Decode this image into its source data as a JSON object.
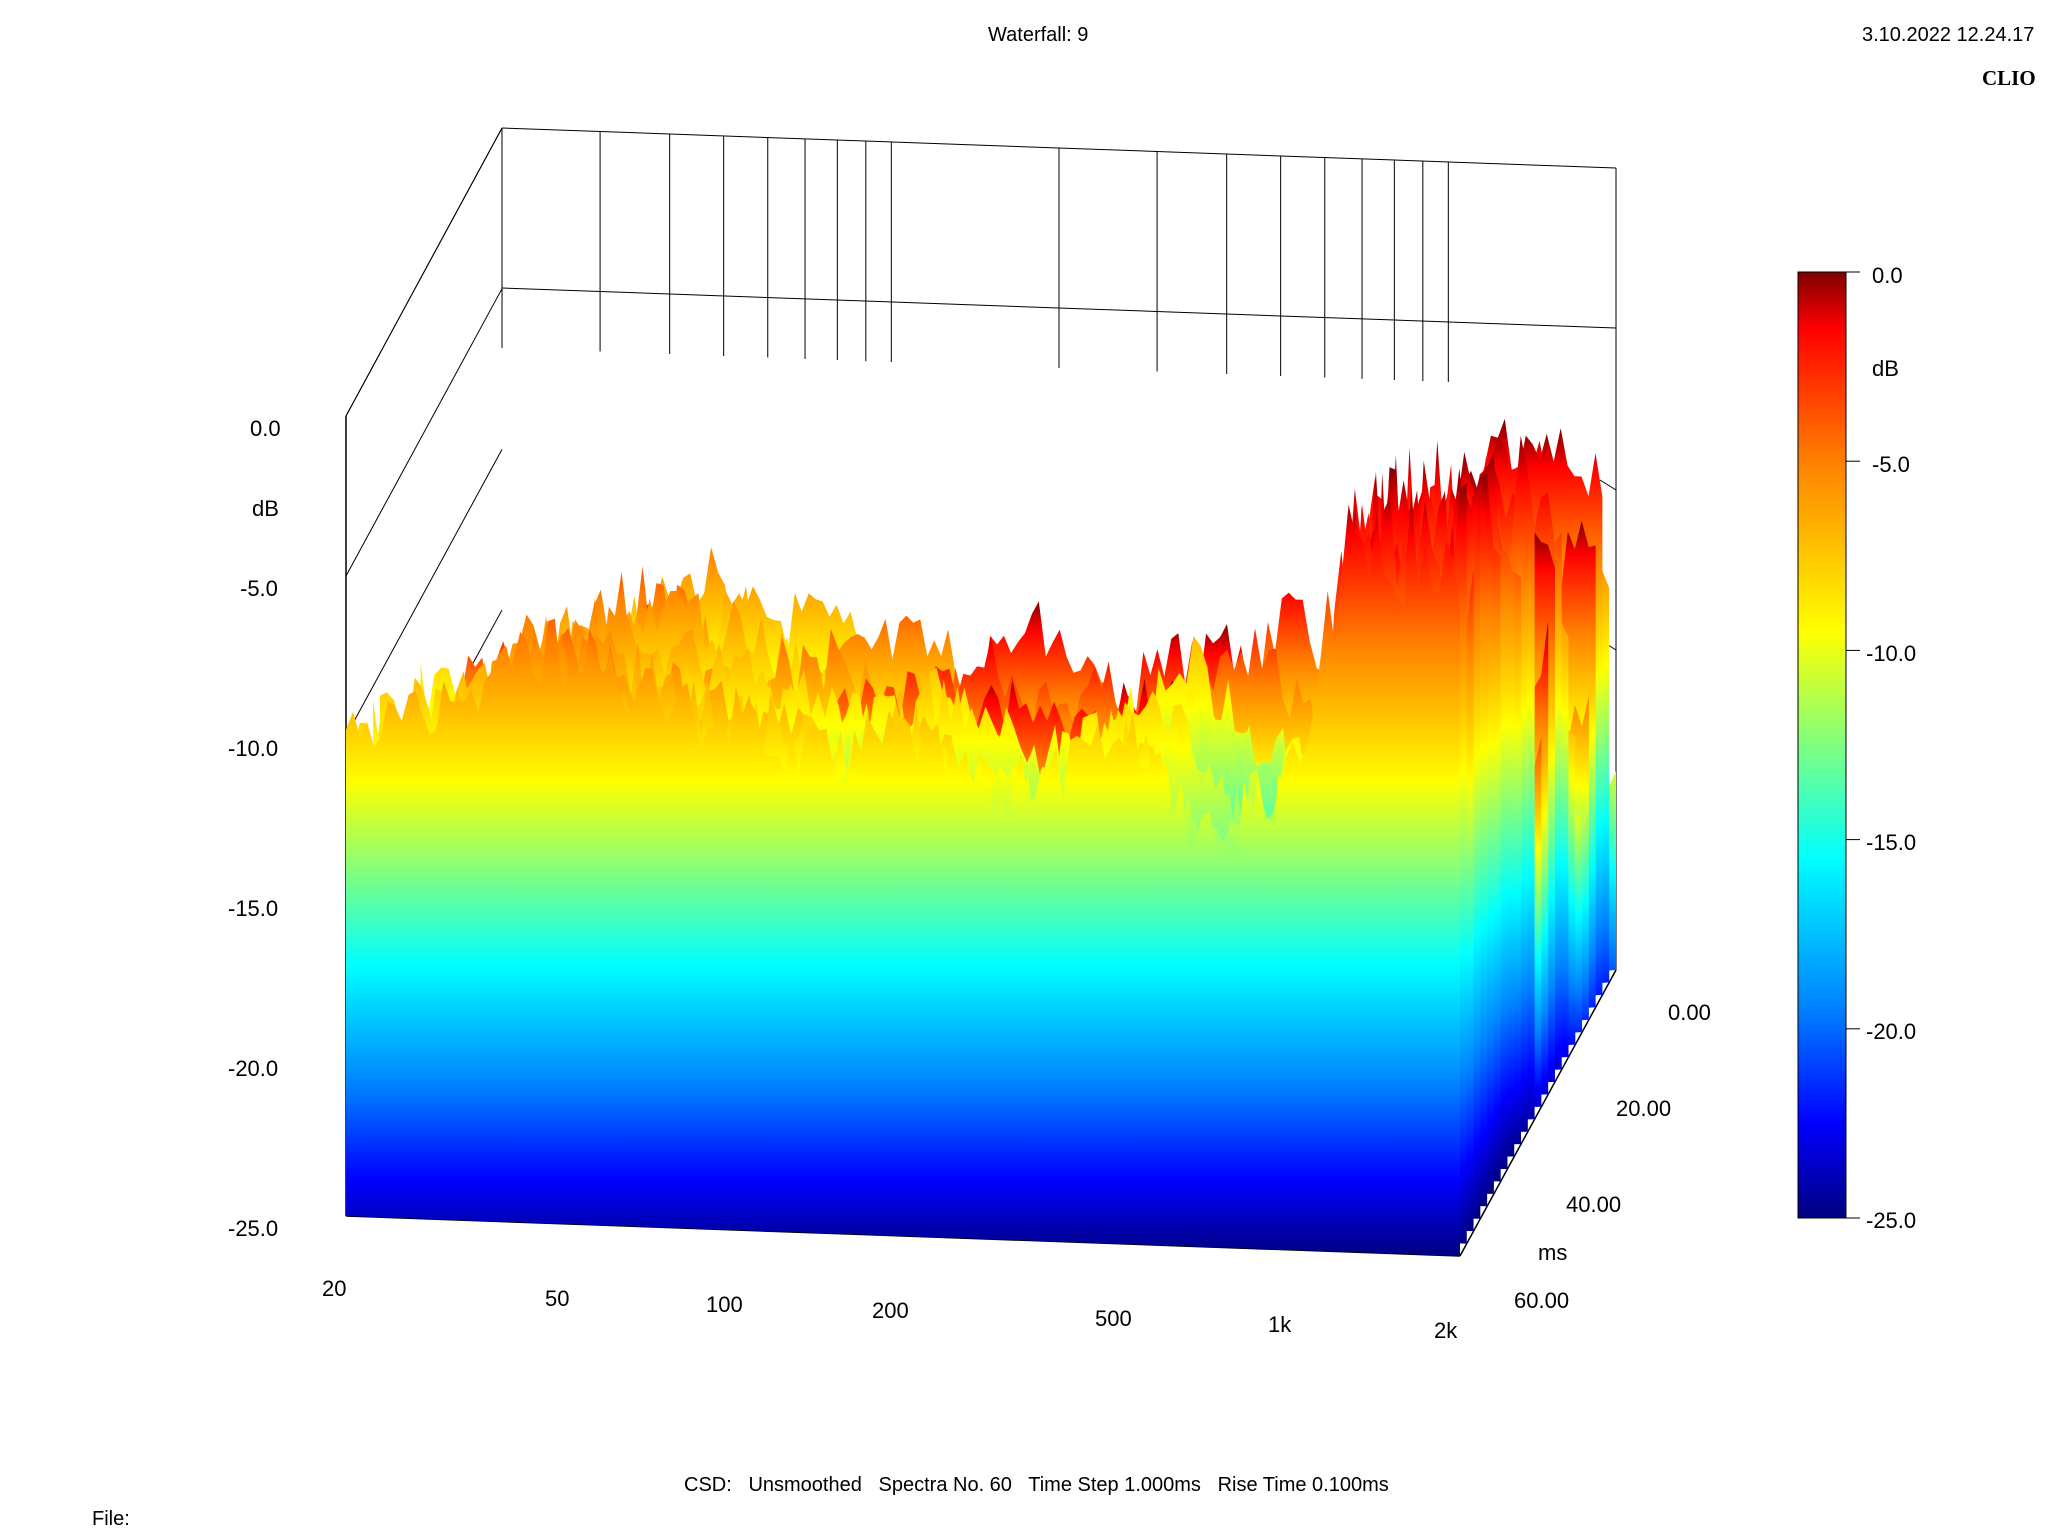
{
  "header": {
    "title": "Waterfall: 9",
    "timestamp": "3.10.2022 12.24.17",
    "brand": "CLIO"
  },
  "footer": {
    "csd_info": "CSD:   Unsmoothed   Spectra No. 60   Time Step 1.000ms   Rise Time 0.100ms",
    "file_label": "File:"
  },
  "chart_data": {
    "type": "waterfall",
    "title": "Waterfall: 9",
    "z_axis": {
      "label": "dB",
      "range": [
        -25,
        0
      ],
      "ticks": [
        "0.0",
        "-5.0",
        "-10.0",
        "-15.0",
        "-20.0",
        "-25.0"
      ]
    },
    "x_axis": {
      "scale": "log",
      "range": [
        20,
        2000
      ],
      "ticks": [
        "20",
        "50",
        "100",
        "200",
        "500",
        "1k",
        "2k"
      ]
    },
    "time_axis": {
      "label": "ms",
      "range": [
        0,
        60
      ],
      "ticks": [
        "0.00",
        "20.00",
        "40.00",
        "60.00"
      ]
    },
    "colorbar": {
      "label": "dB",
      "ticks": [
        "0.0",
        "-5.0",
        "-10.0",
        "-15.0",
        "-20.0",
        "-25.0"
      ],
      "colors": [
        "#800000",
        "#ff0000",
        "#ff8000",
        "#ffff00",
        "#80ff80",
        "#00ffff",
        "#0080ff",
        "#0000ff",
        "#000080"
      ]
    },
    "spectra_no": 60,
    "time_step_ms": 1.0,
    "rise_time_ms": 0.1,
    "front_slice_db": {
      "freq_hz": [
        20,
        30,
        40,
        50,
        70,
        100,
        150,
        200,
        300,
        500,
        700,
        1000,
        1300,
        1600,
        2000
      ],
      "level_db": [
        -8.5,
        -8.0,
        -6.0,
        -6.0,
        -7.5,
        -8.0,
        -9.0,
        -8.0,
        -10.0,
        -8.0,
        -11.5,
        -9.0,
        -3.0,
        -4.0,
        -4.5
      ]
    },
    "peak_db": -0.5,
    "peak_freq_hz": 1200
  }
}
